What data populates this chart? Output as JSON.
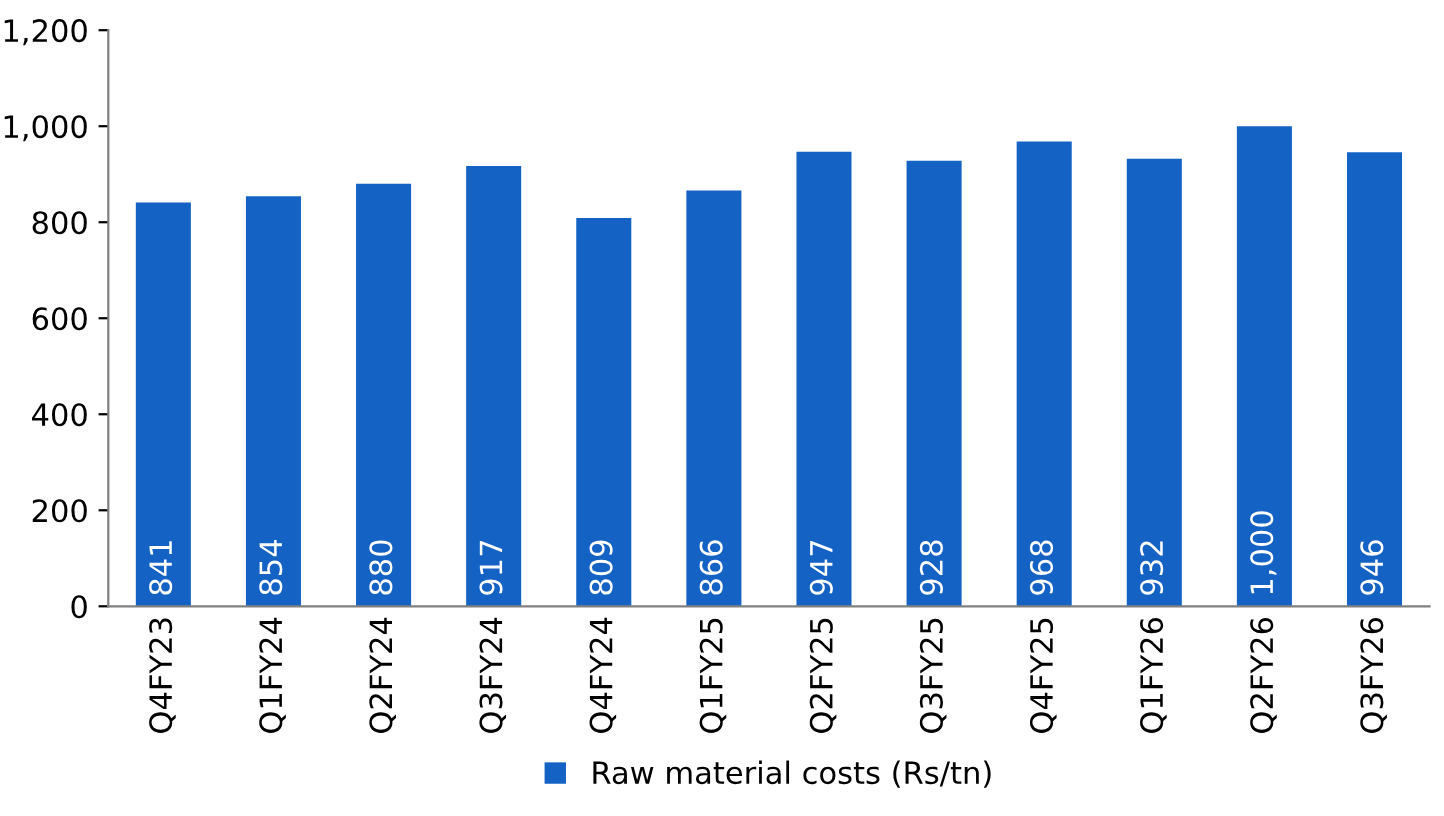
{
  "chart_data": {
    "type": "bar",
    "categories": [
      "Q4FY23",
      "Q1FY24",
      "Q2FY24",
      "Q3FY24",
      "Q4FY24",
      "Q1FY25",
      "Q2FY25",
      "Q3FY25",
      "Q4FY25",
      "Q1FY26",
      "Q2FY26",
      "Q3FY26"
    ],
    "series": [
      {
        "name": "Raw material costs (Rs/tn)",
        "color": "#1462c4",
        "values": [
          841,
          854,
          880,
          917,
          809,
          866,
          947,
          928,
          968,
          932,
          1000,
          946
        ]
      }
    ],
    "value_labels": [
      "841",
      "854",
      "880",
      "917",
      "809",
      "866",
      "947",
      "928",
      "968",
      "932",
      "1,000",
      "946"
    ],
    "ylim": [
      0,
      1200
    ],
    "yticks": [
      0,
      200,
      400,
      600,
      800,
      {
        "value": 1000,
        "label": "1,000"
      },
      {
        "value": 1200,
        "label": "1,200"
      }
    ],
    "grid": false,
    "legend": "bottom"
  }
}
